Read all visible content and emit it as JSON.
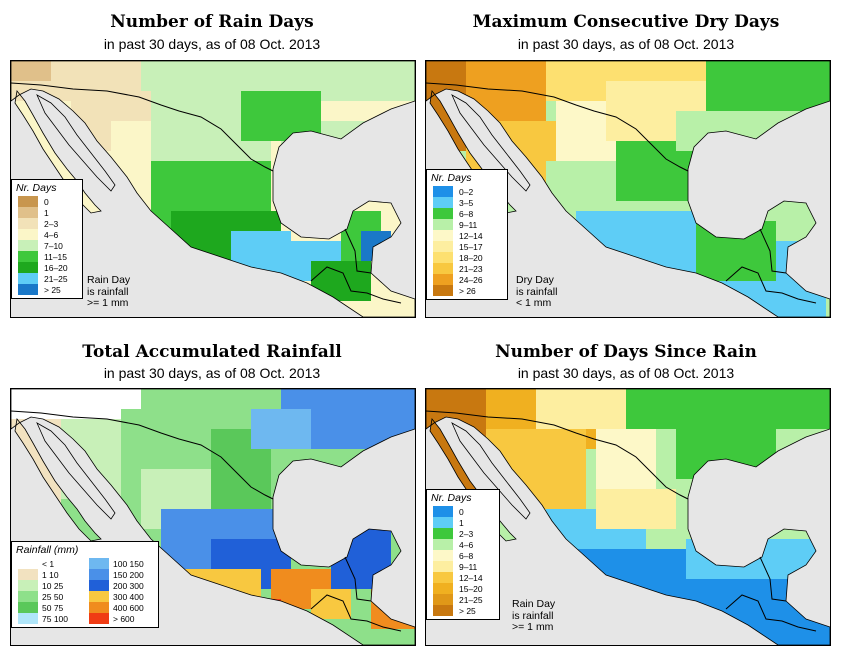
{
  "panels": [
    {
      "title": "Number of Rain Days",
      "subtitle": "in past 30 days, as of  08 Oct. 2013",
      "legend": {
        "title": "Nr. Days",
        "items": [
          {
            "label": "0",
            "color": "#c8964e"
          },
          {
            "label": "1",
            "color": "#e0c08a"
          },
          {
            "label": "2–3",
            "color": "#f2e2b8"
          },
          {
            "label": "4–6",
            "color": "#fbf6c8"
          },
          {
            "label": "7–10",
            "color": "#c8f0b8"
          },
          {
            "label": "11–15",
            "color": "#3ec83c"
          },
          {
            "label": "16–20",
            "color": "#1ea81e"
          },
          {
            "label": "21–25",
            "color": "#5ecdf6"
          },
          {
            "label": "> 25",
            "color": "#1a78c8"
          }
        ]
      },
      "note": [
        "Rain Day",
        "is rainfall",
        ">= 1 mm"
      ]
    },
    {
      "title": "Maximum Consecutive Dry Days",
      "subtitle": "in past 30 days, as of  08 Oct. 2013",
      "legend": {
        "title": "Nr. Days",
        "items": [
          {
            "label": "0–2",
            "color": "#1e90e8"
          },
          {
            "label": "3–5",
            "color": "#5ecdf6"
          },
          {
            "label": "6–8",
            "color": "#3ec83c"
          },
          {
            "label": "9–11",
            "color": "#b8f0a8"
          },
          {
            "label": "12–14",
            "color": "#fdf8c8"
          },
          {
            "label": "15–17",
            "color": "#fdeea0"
          },
          {
            "label": "18–20",
            "color": "#fde070"
          },
          {
            "label": "21–23",
            "color": "#f8c840"
          },
          {
            "label": "24–26",
            "color": "#eea020"
          },
          {
            "label": "> 26",
            "color": "#c87810"
          }
        ]
      },
      "note": [
        "Dry Day",
        "is rainfall",
        "< 1 mm"
      ]
    },
    {
      "title": "Total Accumulated Rainfall",
      "subtitle": "in past 30 days, as of  08 Oct. 2013",
      "legend": {
        "title": "Rainfall (mm)",
        "items": [
          {
            "label": "< 1",
            "color": "#ffffff"
          },
          {
            "label": "1   10",
            "color": "#f2e2c0"
          },
          {
            "label": "10   25",
            "color": "#c8f0b8"
          },
          {
            "label": "25   50",
            "color": "#8ee08a"
          },
          {
            "label": "50   75",
            "color": "#5ac85a"
          },
          {
            "label": "75  100",
            "color": "#b0e6fa"
          },
          {
            "label": "100  150",
            "color": "#6eb8f0"
          },
          {
            "label": "150  200",
            "color": "#4a90e8"
          },
          {
            "label": "200  300",
            "color": "#2060d8"
          },
          {
            "label": "300  400",
            "color": "#f8c840"
          },
          {
            "label": "400  600",
            "color": "#f08c1e"
          },
          {
            "label": "> 600",
            "color": "#f03c14"
          }
        ]
      },
      "note": []
    },
    {
      "title": "Number of Days Since Rain",
      "subtitle": "in past 30 days, as of  08 Oct. 2013",
      "legend": {
        "title": "Nr. Days",
        "items": [
          {
            "label": "0",
            "color": "#1e90e8"
          },
          {
            "label": "1",
            "color": "#5ecdf6"
          },
          {
            "label": "2–3",
            "color": "#3ec83c"
          },
          {
            "label": "4–6",
            "color": "#b8f0a8"
          },
          {
            "label": "6–8",
            "color": "#fdf8c8"
          },
          {
            "label": "9–11",
            "color": "#fdeea0"
          },
          {
            "label": "12–14",
            "color": "#f8c840"
          },
          {
            "label": "15–20",
            "color": "#f0b020"
          },
          {
            "label": "21–25",
            "color": "#e09818"
          },
          {
            "label": "> 25",
            "color": "#c87810"
          }
        ]
      },
      "note": [
        "Rain Day",
        "is rainfall",
        ">= 1 mm"
      ]
    }
  ],
  "colors": {
    "ocean": "#e6e6e6",
    "border": "#000000"
  }
}
